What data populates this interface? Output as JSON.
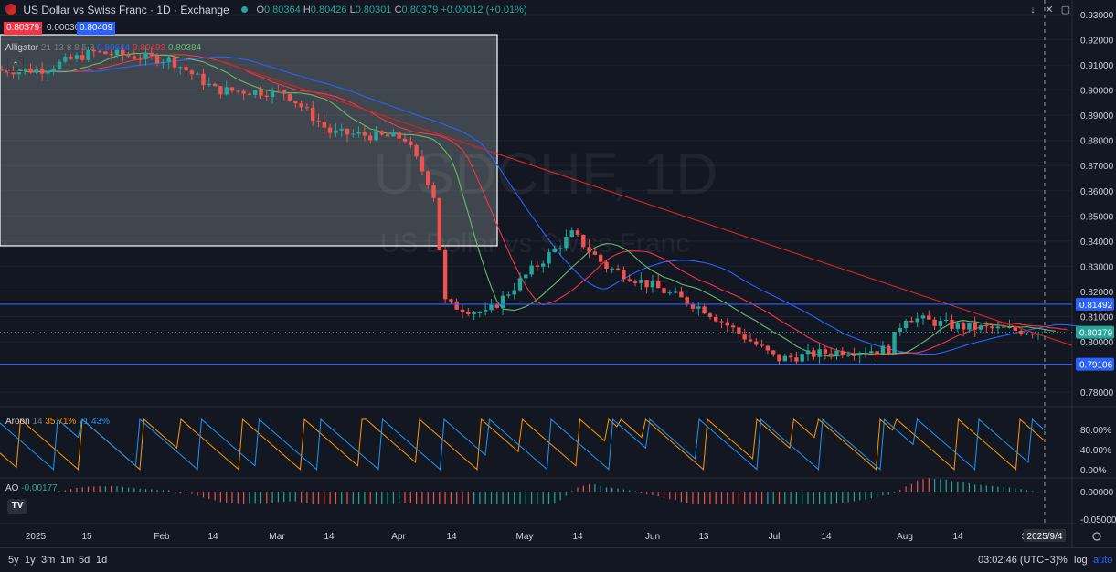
{
  "header": {
    "symbol_title": "US Dollar vs Swiss Franc · 1D · Exchange",
    "ohlc": {
      "o_label": "O",
      "o": "0.80364",
      "h_label": "H",
      "h": "0.80426",
      "l_label": "L",
      "l": "0.80301",
      "c_label": "C",
      "c": "0.80379",
      "change": "+0.00012 (+0.01%)"
    },
    "sell_price": "0.80379",
    "spread": "0.00030",
    "buy_price": "0.80409"
  },
  "indicators": {
    "alligator": {
      "name": "Alligator",
      "params": "21 13 8 8 5 3",
      "v1": "0.80644",
      "v2": "0.80493",
      "v3": "0.80384"
    },
    "aroon": {
      "name": "Aroon",
      "params": "14",
      "up": "35.71%",
      "down": "71.43%"
    },
    "ao": {
      "name": "AO",
      "value": "-0.00177"
    }
  },
  "watermark": {
    "symbol": "USDCHF, 1D",
    "description": "US Dollar vs Swiss Franc"
  },
  "price_axis": {
    "ticks": [
      "0.93000",
      "0.92000",
      "0.91000",
      "0.90000",
      "0.89000",
      "0.88000",
      "0.87000",
      "0.86000",
      "0.85000",
      "0.84000",
      "0.83000",
      "0.82000",
      "0.81000",
      "0.80000",
      "0.78000"
    ],
    "current_label": "0.80379",
    "level_upper_label": "0.81492",
    "level_lower_label": "0.79106"
  },
  "aroon_axis": {
    "ticks": [
      "80.00%",
      "40.00%",
      "0.00%"
    ]
  },
  "ao_axis": {
    "ticks": [
      "0.00000",
      "-0.05000"
    ]
  },
  "time_axis": {
    "labels": [
      "2025",
      "15",
      "Feb",
      "14",
      "Mar",
      "14",
      "Apr",
      "14",
      "May",
      "14",
      "Jun",
      "13",
      "Jul",
      "14",
      "Aug",
      "14",
      "S"
    ],
    "crosshair_date": "2025/9/4"
  },
  "bottom_bar": {
    "ranges": [
      "5y",
      "1y",
      "3m",
      "1m",
      "5d",
      "1d"
    ],
    "clock": "03:02:46 (UTC+3)",
    "percent": "%",
    "log": "log",
    "auto": "auto"
  },
  "colors": {
    "bg": "#131722",
    "grid": "#1e222d",
    "up": "#26a69a",
    "down": "#ef5350",
    "jaw": "#2962ff",
    "teeth": "#f23645",
    "lips": "#66bb6a",
    "aroon_up": "#ff9800",
    "aroon_down": "#2196f3",
    "level": "#2962ff",
    "trend": "#c62828"
  },
  "chart_data": {
    "type": "candlestick",
    "symbol": "USDCHF",
    "timeframe": "1D",
    "series": [
      {
        "name": "price",
        "approx_close_path": [
          {
            "x": "2025-01-02",
            "y": 0.908
          },
          {
            "x": "2025-01-15",
            "y": 0.915
          },
          {
            "x": "2025-02-03",
            "y": 0.912
          },
          {
            "x": "2025-02-14",
            "y": 0.9
          },
          {
            "x": "2025-03-03",
            "y": 0.899
          },
          {
            "x": "2025-03-14",
            "y": 0.883
          },
          {
            "x": "2025-04-01",
            "y": 0.881
          },
          {
            "x": "2025-04-08",
            "y": 0.86
          },
          {
            "x": "2025-04-11",
            "y": 0.815
          },
          {
            "x": "2025-04-21",
            "y": 0.811
          },
          {
            "x": "2025-05-01",
            "y": 0.827
          },
          {
            "x": "2025-05-12",
            "y": 0.843
          },
          {
            "x": "2025-05-20",
            "y": 0.83
          },
          {
            "x": "2025-06-02",
            "y": 0.821
          },
          {
            "x": "2025-06-13",
            "y": 0.813
          },
          {
            "x": "2025-07-01",
            "y": 0.793
          },
          {
            "x": "2025-07-14",
            "y": 0.796
          },
          {
            "x": "2025-07-28",
            "y": 0.797
          },
          {
            "x": "2025-08-01",
            "y": 0.81
          },
          {
            "x": "2025-08-14",
            "y": 0.806
          },
          {
            "x": "2025-09-04",
            "y": 0.8038
          }
        ]
      }
    ],
    "horizontal_levels": [
      0.81492,
      0.79106
    ],
    "current_price": 0.80379,
    "y_range": [
      0.775,
      0.935
    ]
  }
}
